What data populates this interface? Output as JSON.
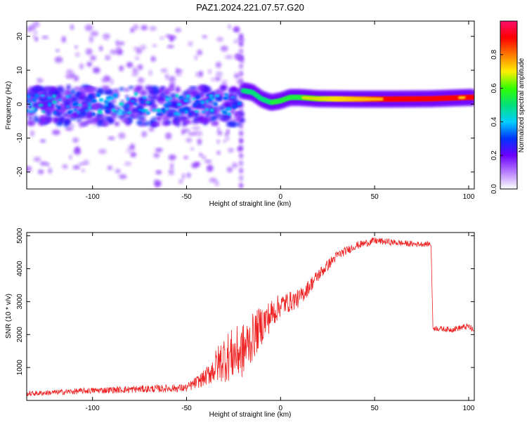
{
  "figure": {
    "title": "PAZ1.2024.221.07.57.G20"
  },
  "chart_data": [
    {
      "type": "heatmap",
      "xlabel": "Height of straight line (km)",
      "ylabel": "Frequency (Hz)",
      "xlim": [
        -135,
        103
      ],
      "ylim": [
        -25,
        24.5
      ],
      "xticks": [
        -100,
        -50,
        0,
        50,
        100
      ],
      "yticks": [
        -20,
        -10,
        0,
        10,
        20
      ],
      "colorbar": {
        "label": "Normalized spectral amplitude",
        "range": [
          0,
          1
        ],
        "ticks": [
          0.0,
          0.2,
          0.4,
          0.6,
          0.8
        ],
        "tick_labels": [
          "0.0",
          "0.2",
          "0.4",
          "0.6",
          "0.8"
        ],
        "colormap": [
          "#ffffff",
          "#b77fff",
          "#6d00ff",
          "#0033ff",
          "#00cfff",
          "#00e07a",
          "#33ff00",
          "#ffee00",
          "#ff7a00",
          "#ff0000",
          "#ff0d6e"
        ]
      },
      "ridge": [
        {
          "x": -20,
          "y": 4.0
        },
        {
          "x": -15,
          "y": 3.5
        },
        {
          "x": -10,
          "y": 1.5
        },
        {
          "x": -5,
          "y": 0.5
        },
        {
          "x": 0,
          "y": 1.0
        },
        {
          "x": 5,
          "y": 2.0
        },
        {
          "x": 10,
          "y": 2.0
        },
        {
          "x": 20,
          "y": 1.6
        },
        {
          "x": 40,
          "y": 1.5
        },
        {
          "x": 60,
          "y": 1.5
        },
        {
          "x": 80,
          "y": 1.6
        },
        {
          "x": 100,
          "y": 2.0
        }
      ],
      "noise_region": {
        "x_range": [
          -135,
          -20
        ],
        "y_band": [
          -6,
          5
        ]
      }
    },
    {
      "type": "line",
      "xlabel": "Height of straight line (km)",
      "ylabel": "SNR (10 * v/v)",
      "xlim": [
        -135,
        103
      ],
      "ylim": [
        0,
        5100
      ],
      "xticks": [
        -100,
        -50,
        0,
        50,
        100
      ],
      "yticks": [
        1000,
        2000,
        3000,
        4000,
        5000
      ],
      "series": [
        {
          "color": "#ee2222",
          "trend": [
            {
              "x": -135,
              "y": 200
            },
            {
              "x": -100,
              "y": 300
            },
            {
              "x": -70,
              "y": 350
            },
            {
              "x": -50,
              "y": 380
            },
            {
              "x": -40,
              "y": 700
            },
            {
              "x": -30,
              "y": 1300
            },
            {
              "x": -20,
              "y": 1500
            },
            {
              "x": -10,
              "y": 2300
            },
            {
              "x": 0,
              "y": 2900
            },
            {
              "x": 10,
              "y": 3100
            },
            {
              "x": 20,
              "y": 3800
            },
            {
              "x": 30,
              "y": 4400
            },
            {
              "x": 40,
              "y": 4700
            },
            {
              "x": 50,
              "y": 4850
            },
            {
              "x": 60,
              "y": 4800
            },
            {
              "x": 70,
              "y": 4750
            },
            {
              "x": 80,
              "y": 4750
            },
            {
              "x": 81,
              "y": 2200
            },
            {
              "x": 90,
              "y": 2150
            },
            {
              "x": 100,
              "y": 2250
            },
            {
              "x": 103,
              "y": 2100
            }
          ],
          "noise_amplitude": [
            {
              "x": -135,
              "a": 150
            },
            {
              "x": -50,
              "a": 250
            },
            {
              "x": -40,
              "a": 500
            },
            {
              "x": -30,
              "a": 1500
            },
            {
              "x": -20,
              "a": 1700
            },
            {
              "x": -10,
              "a": 1200
            },
            {
              "x": 0,
              "a": 700
            },
            {
              "x": 20,
              "a": 400
            },
            {
              "x": 35,
              "a": 250
            },
            {
              "x": 80,
              "a": 150
            },
            {
              "x": 103,
              "a": 200
            }
          ]
        }
      ]
    }
  ]
}
